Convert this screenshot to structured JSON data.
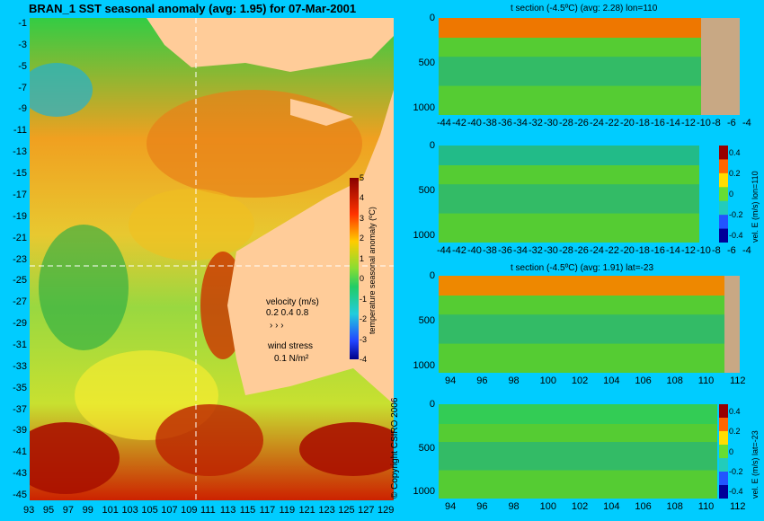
{
  "map": {
    "title": "BRAN_1  SST seasonal anomaly  (avg: 1.95) for 07-Mar-2001",
    "y_ticks": [
      "-1",
      "-3",
      "-5",
      "-7",
      "-9",
      "-11",
      "-13",
      "-15",
      "-17",
      "-19",
      "-21",
      "-23",
      "-25",
      "-27",
      "-29",
      "-31",
      "-33",
      "-35",
      "-37",
      "-39",
      "-41",
      "-43",
      "-45"
    ],
    "x_ticks": [
      "93",
      "95",
      "97",
      "99",
      "101",
      "103",
      "105",
      "107",
      "109",
      "111",
      "113",
      "115",
      "117",
      "119",
      "121",
      "123",
      "125",
      "127",
      "129"
    ],
    "colorbar": {
      "label": "temperature seasonal anomaly (ºC)",
      "ticks": [
        "5",
        "4",
        "3",
        "2",
        "1",
        "0",
        "-1",
        "-2",
        "-3",
        "-4"
      ]
    },
    "velocity_legend": {
      "title": "velocity (m/s)",
      "values": "0.2 0.4 0.8"
    },
    "wind_legend": {
      "title": "wind stress",
      "value": "0.1 N/m²"
    },
    "copyright": "© Copyright CSIRO 2006"
  },
  "panels": [
    {
      "title": "t section (-4.5ºC) (avg: 2.28) lon=110",
      "y_ticks": [
        "0",
        "500",
        "1000"
      ],
      "x_ticks": [
        "-44",
        "-42",
        "-40",
        "-38",
        "-36",
        "-34",
        "-32",
        "-30",
        "-28",
        "-26",
        "-24",
        "-22",
        "-20",
        "-18",
        "-16",
        "-14",
        "-12",
        "-10",
        "-8",
        "-6",
        "-4"
      ],
      "colorbar": null
    },
    {
      "title": "",
      "y_ticks": [
        "0",
        "500",
        "1000"
      ],
      "x_ticks": [
        "-44",
        "-42",
        "-40",
        "-38",
        "-36",
        "-34",
        "-32",
        "-30",
        "-28",
        "-26",
        "-24",
        "-22",
        "-20",
        "-18",
        "-16",
        "-14",
        "-12",
        "-10",
        "-8",
        "-6",
        "-4"
      ],
      "colorbar": {
        "label": "vel. E (m/s) lon=110",
        "ticks": [
          "0.4",
          "0.2",
          "0",
          "-0.2",
          "-0.4"
        ]
      }
    },
    {
      "title": "t section (-4.5ºC) (avg: 1.91) lat=-23",
      "y_ticks": [
        "0",
        "500",
        "1000"
      ],
      "x_ticks": [
        "94",
        "96",
        "98",
        "100",
        "102",
        "104",
        "106",
        "108",
        "110",
        "112"
      ],
      "colorbar": null
    },
    {
      "title": "",
      "y_ticks": [
        "0",
        "500",
        "1000"
      ],
      "x_ticks": [
        "94",
        "96",
        "98",
        "100",
        "102",
        "104",
        "106",
        "108",
        "110",
        "112"
      ],
      "colorbar": {
        "label": "vel. E (m/s) lat=-23",
        "ticks": [
          "0.4",
          "0.2",
          "0",
          "-0.2",
          "-0.4"
        ]
      }
    }
  ],
  "chart_data": [
    {
      "type": "heatmap",
      "title": "BRAN_1  SST seasonal anomaly  (avg: 1.95) for 07-Mar-2001",
      "x_range": [
        93,
        130
      ],
      "y_range": [
        -45,
        0
      ],
      "colorbar_range": [
        -4,
        5
      ]
    },
    {
      "type": "heatmap",
      "title": "t section (-4.5ºC) (avg: 2.28) lon=110",
      "x_range": [
        -45,
        -3
      ],
      "y_range": [
        1050,
        0
      ]
    },
    {
      "type": "heatmap",
      "title": "",
      "x_range": [
        -45,
        -3
      ],
      "y_range": [
        1050,
        0
      ],
      "colorbar_range": [
        -0.5,
        0.5
      ]
    },
    {
      "type": "heatmap",
      "title": "t section (-4.5ºC) (avg: 1.91) lat=-23",
      "x_range": [
        93,
        114
      ],
      "y_range": [
        1050,
        0
      ]
    },
    {
      "type": "heatmap",
      "title": "",
      "x_range": [
        93,
        114
      ],
      "y_range": [
        1050,
        0
      ],
      "colorbar_range": [
        -0.5,
        0.5
      ]
    }
  ]
}
